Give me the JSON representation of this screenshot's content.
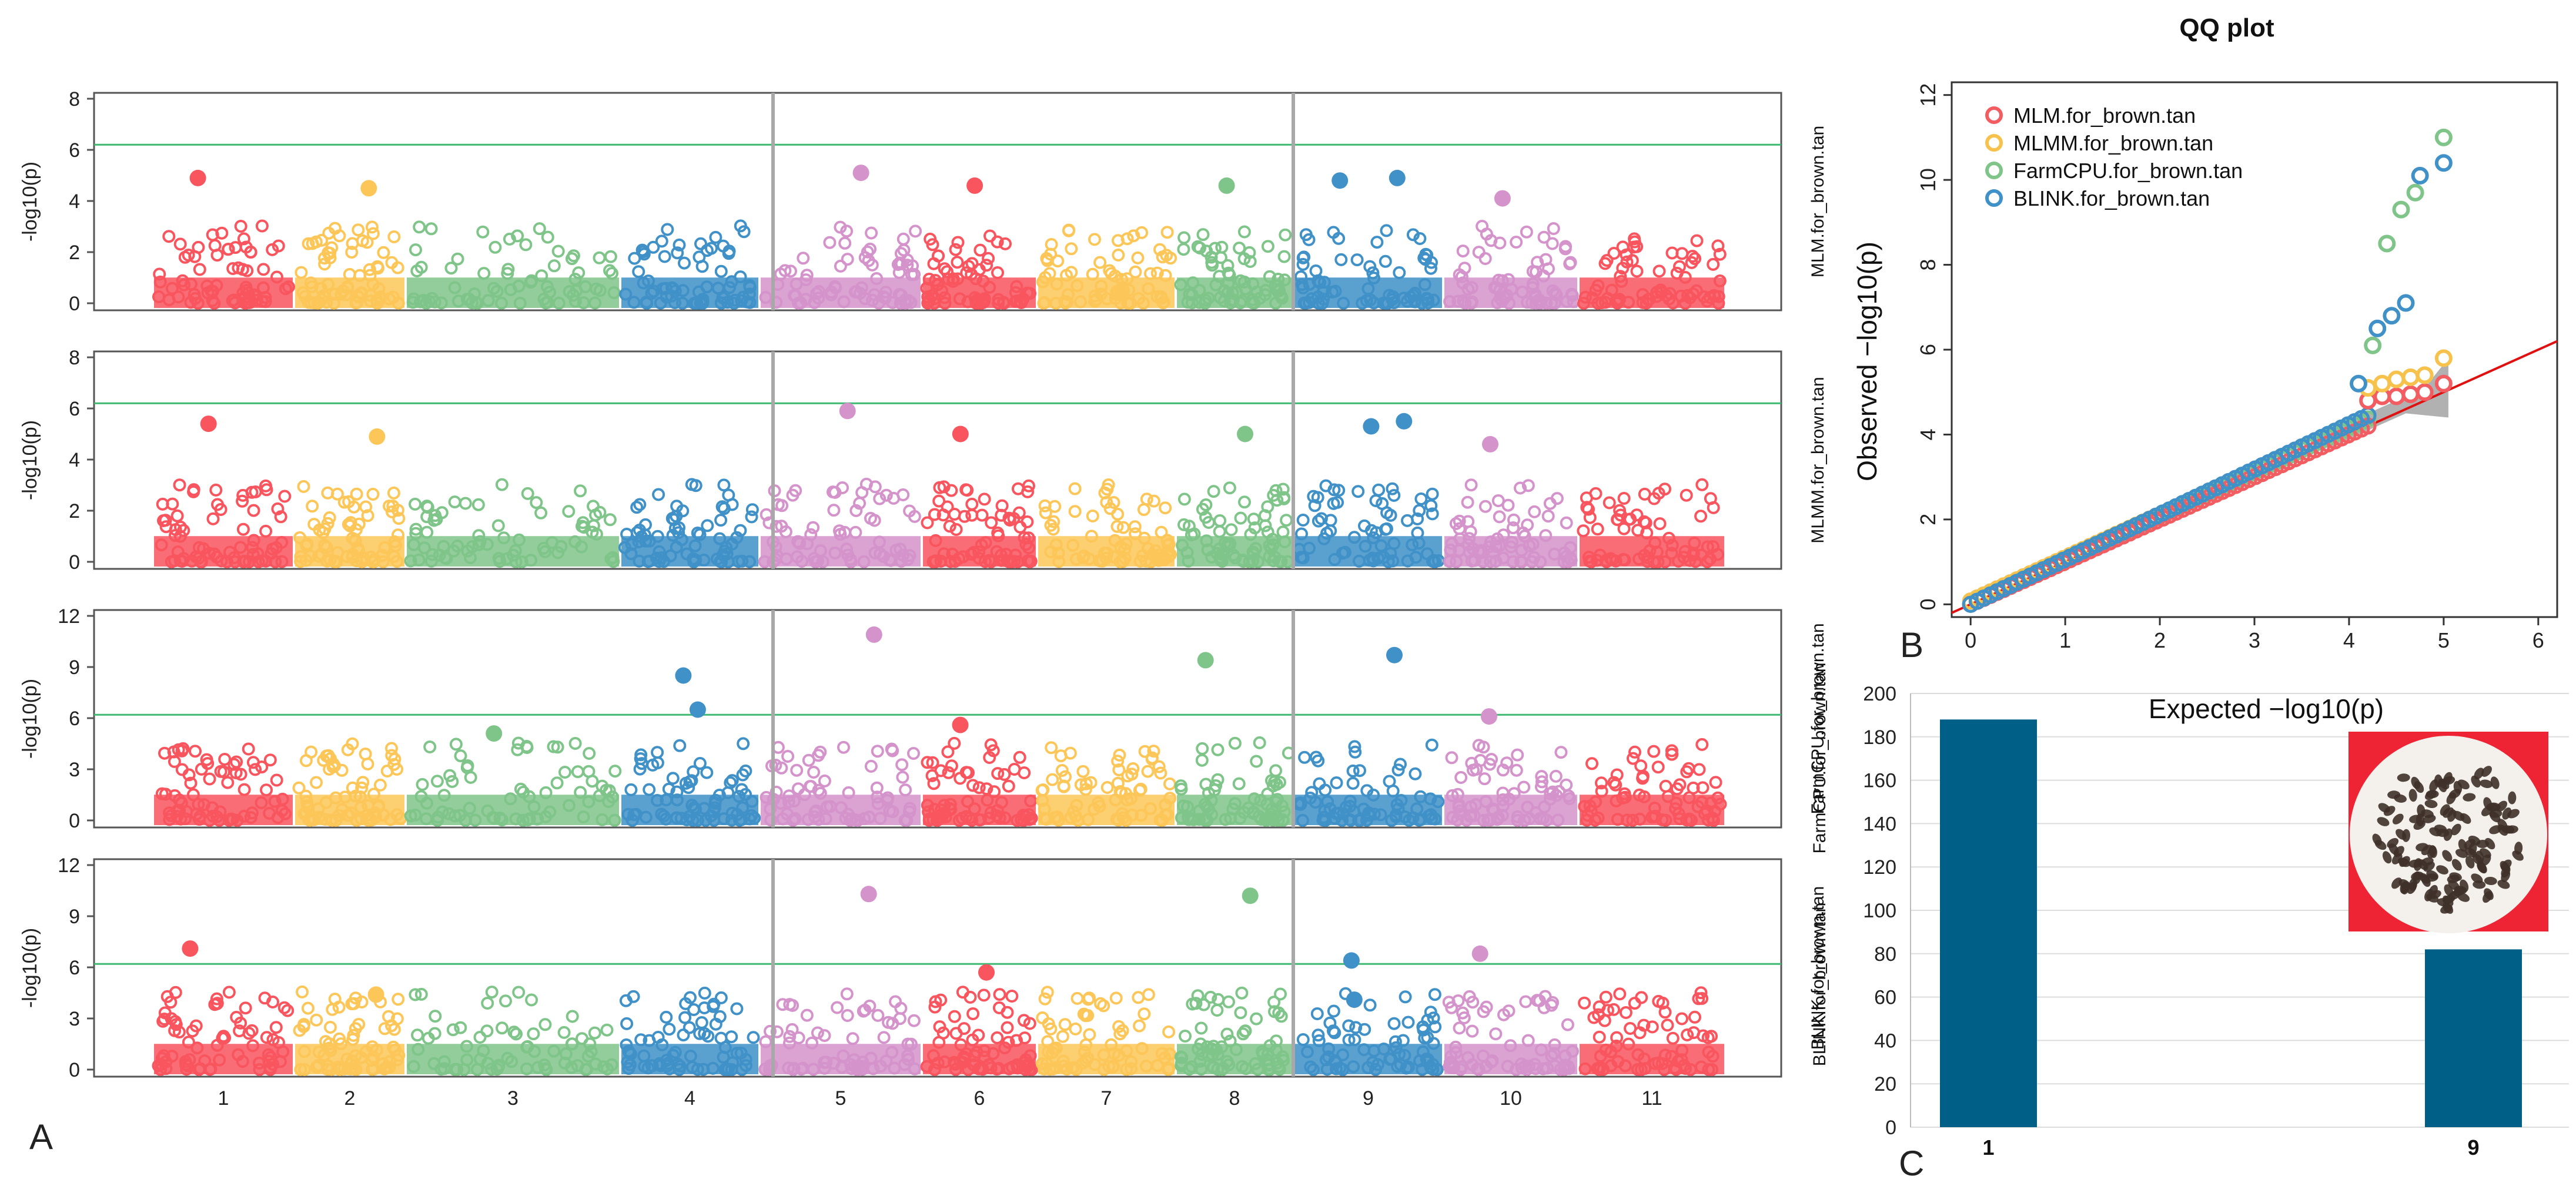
{
  "colors": {
    "chrom": [
      "#f9555f",
      "#fcc758",
      "#7fc58a",
      "#3f91c8",
      "#d493cb"
    ],
    "threshold": "#3fb871",
    "marker_line": "#a8a8a8",
    "frame": "#555555",
    "bar": "#005f87",
    "qq_diag": "#e01010",
    "qq_band": "#9e9e9e",
    "qq_series": [
      "#f25d62",
      "#f7c24c",
      "#7fc58a",
      "#3f91c8"
    ],
    "seed_bg": "#ee2434",
    "seed_bowl": "#f4f1ec",
    "seed": "#3e3129"
  },
  "panel_labels": {
    "a": "A",
    "b": "B",
    "c": "C"
  },
  "chart_data": [
    {
      "type": "scatter",
      "subtype": "manhattan",
      "ylabel": "-log10(p)",
      "chromosomes": [
        "1",
        "2",
        "3",
        "4",
        "5",
        "6",
        "7",
        "8",
        "9",
        "10",
        "11"
      ],
      "threshold": 6.2,
      "highlight_marker_positions": [
        "chr5 start",
        "chr9 start"
      ],
      "panels": [
        {
          "trait": "MLM.for_brown.tan",
          "ylim": [
            0,
            8
          ],
          "yticks": [
            0,
            2,
            4,
            6,
            8
          ],
          "peaks": [
            {
              "chrom": 1,
              "value": 4.9
            },
            {
              "chrom": 2,
              "value": 4.5
            },
            {
              "chrom": 5,
              "value": 5.1
            },
            {
              "chrom": 6,
              "value": 4.6
            },
            {
              "chrom": 8,
              "value": 4.6
            },
            {
              "chrom": 9,
              "value": 4.8
            },
            {
              "chrom": 9,
              "value": 4.9
            },
            {
              "chrom": 10,
              "value": 4.1
            }
          ]
        },
        {
          "trait": "MLMM.for_brown.tan",
          "ylim": [
            0,
            8
          ],
          "yticks": [
            0,
            2,
            4,
            6,
            8
          ],
          "peaks": [
            {
              "chrom": 1,
              "value": 5.4
            },
            {
              "chrom": 2,
              "value": 4.9
            },
            {
              "chrom": 5,
              "value": 5.9
            },
            {
              "chrom": 6,
              "value": 5.0
            },
            {
              "chrom": 8,
              "value": 5.0
            },
            {
              "chrom": 9,
              "value": 5.3
            },
            {
              "chrom": 9,
              "value": 5.5
            },
            {
              "chrom": 10,
              "value": 4.6
            }
          ]
        },
        {
          "trait": "FarmCPU.for_brown.tan",
          "ylim": [
            0,
            12
          ],
          "yticks": [
            0,
            3,
            6,
            9,
            12
          ],
          "peaks": [
            {
              "chrom": 3,
              "value": 5.1
            },
            {
              "chrom": 4,
              "value": 8.5
            },
            {
              "chrom": 4,
              "value": 6.5
            },
            {
              "chrom": 5,
              "value": 10.9
            },
            {
              "chrom": 6,
              "value": 5.6
            },
            {
              "chrom": 8,
              "value": 9.4
            },
            {
              "chrom": 9,
              "value": 9.7
            },
            {
              "chrom": 10,
              "value": 6.1
            }
          ]
        },
        {
          "trait": "BLINK.for_brown.tan",
          "ylim": [
            0,
            12
          ],
          "yticks": [
            0,
            3,
            6,
            9,
            12
          ],
          "peaks": [
            {
              "chrom": 1,
              "value": 7.1
            },
            {
              "chrom": 2,
              "value": 4.4
            },
            {
              "chrom": 5,
              "value": 10.3
            },
            {
              "chrom": 6,
              "value": 5.7
            },
            {
              "chrom": 8,
              "value": 10.2
            },
            {
              "chrom": 9,
              "value": 6.4
            },
            {
              "chrom": 9,
              "value": 4.1
            },
            {
              "chrom": 10,
              "value": 6.8
            }
          ]
        }
      ]
    },
    {
      "type": "scatter",
      "subtype": "qq",
      "title": "QQ plot",
      "xlabel": "Expected  −log10(p)",
      "ylabel": "Observed  −log10(p)",
      "xlim": [
        -0.2,
        6.2
      ],
      "ylim": [
        -0.3,
        12.3
      ],
      "xticks": [
        0,
        1,
        2,
        3,
        4,
        5,
        6
      ],
      "yticks": [
        0,
        2,
        4,
        6,
        8,
        10,
        12
      ],
      "legend": [
        "MLM.for_brown.tan",
        "MLMM.for_brown.tan",
        "FarmCPU.for_brown.tan",
        "BLINK.for_brown.tan"
      ],
      "legend_position": "top-left",
      "tail_points": [
        {
          "series": "MLM.for_brown.tan",
          "points": [
            [
              4.2,
              4.8
            ],
            [
              4.35,
              4.9
            ],
            [
              4.5,
              4.9
            ],
            [
              4.65,
              4.95
            ],
            [
              4.8,
              5.0
            ],
            [
              5.0,
              5.2
            ]
          ]
        },
        {
          "series": "MLMM.for_brown.tan",
          "points": [
            [
              4.2,
              5.1
            ],
            [
              4.35,
              5.2
            ],
            [
              4.5,
              5.3
            ],
            [
              4.65,
              5.35
            ],
            [
              4.8,
              5.4
            ],
            [
              5.0,
              5.8
            ]
          ]
        },
        {
          "series": "FarmCPU.for_brown.tan",
          "points": [
            [
              4.25,
              6.1
            ],
            [
              4.4,
              8.5
            ],
            [
              4.55,
              9.3
            ],
            [
              4.7,
              9.7
            ],
            [
              5.0,
              11.0
            ]
          ]
        },
        {
          "series": "BLINK.for_brown.tan",
          "points": [
            [
              4.1,
              5.2
            ],
            [
              4.3,
              6.5
            ],
            [
              4.45,
              6.8
            ],
            [
              4.6,
              7.1
            ],
            [
              4.75,
              10.1
            ],
            [
              5.0,
              10.4
            ]
          ]
        }
      ]
    },
    {
      "type": "bar",
      "categories": [
        "1",
        "9"
      ],
      "values": [
        188,
        82
      ],
      "ylim": [
        0,
        200
      ],
      "yticks": [
        0,
        20,
        40,
        60,
        80,
        100,
        120,
        140,
        160,
        180,
        200
      ],
      "trait_labels": [
        "FarmCPU.for_brown.tan",
        "BLINK.for_brown.tan"
      ]
    }
  ]
}
